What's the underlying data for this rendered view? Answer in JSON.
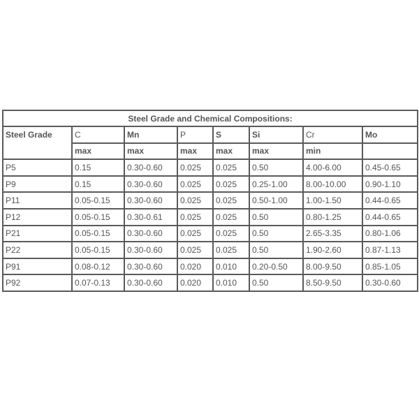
{
  "table": {
    "title": "Steel Grade and Chemical Compositions:",
    "headers": [
      {
        "label": "Steel Grade",
        "bold": true
      },
      {
        "label": "C",
        "bold": false
      },
      {
        "label": "Mn",
        "bold": true
      },
      {
        "label": "P",
        "bold": false
      },
      {
        "label": "S",
        "bold": true
      },
      {
        "label": "Si",
        "bold": true
      },
      {
        "label": "Cr",
        "bold": false
      },
      {
        "label": "Mo",
        "bold": true
      }
    ],
    "limits": [
      "max",
      "max",
      "max",
      "max",
      "max",
      "min",
      ""
    ],
    "rows": [
      [
        "P5",
        "0.15",
        "0.30-0.60",
        "0.025",
        "0.025",
        "0.50",
        "4.00-6.00",
        "0.45-0.65"
      ],
      [
        "P9",
        "0.15",
        "0.30-0.60",
        "0.025",
        "0.025",
        "0.25-1.00",
        "8.00-10.00",
        "0.90-1.10"
      ],
      [
        "P11",
        "0.05-0.15",
        "0.30-0.60",
        "0.025",
        "0.025",
        "0.50-1.00",
        "1.00-1.50",
        "0.44-0.65"
      ],
      [
        "P12",
        "0.05-0.15",
        "0.30-0.61",
        "0.025",
        "0.025",
        "0.50",
        "0.80-1.25",
        "0.44-0.65"
      ],
      [
        "P21",
        "0.05-0.15",
        "0.30-0.60",
        "0.025",
        "0.025",
        "0.50",
        "2.65-3.35",
        "0.80-1.06"
      ],
      [
        "P22",
        "0.05-0.15",
        "0.30-0.60",
        "0.025",
        "0.025",
        "0.50",
        "1.90-2.60",
        "0.87-1.13"
      ],
      [
        "P91",
        "0.08-0.12",
        "0.30-0.60",
        "0.020",
        "0.010",
        "0.20-0.50",
        "8.00-9.50",
        "0.85-1.05"
      ],
      [
        "P92",
        "0.07-0.13",
        "0.30-0.60",
        "0.020",
        "0.010",
        "0.50",
        "8.50-9.50",
        "0.30-0.60"
      ]
    ]
  }
}
